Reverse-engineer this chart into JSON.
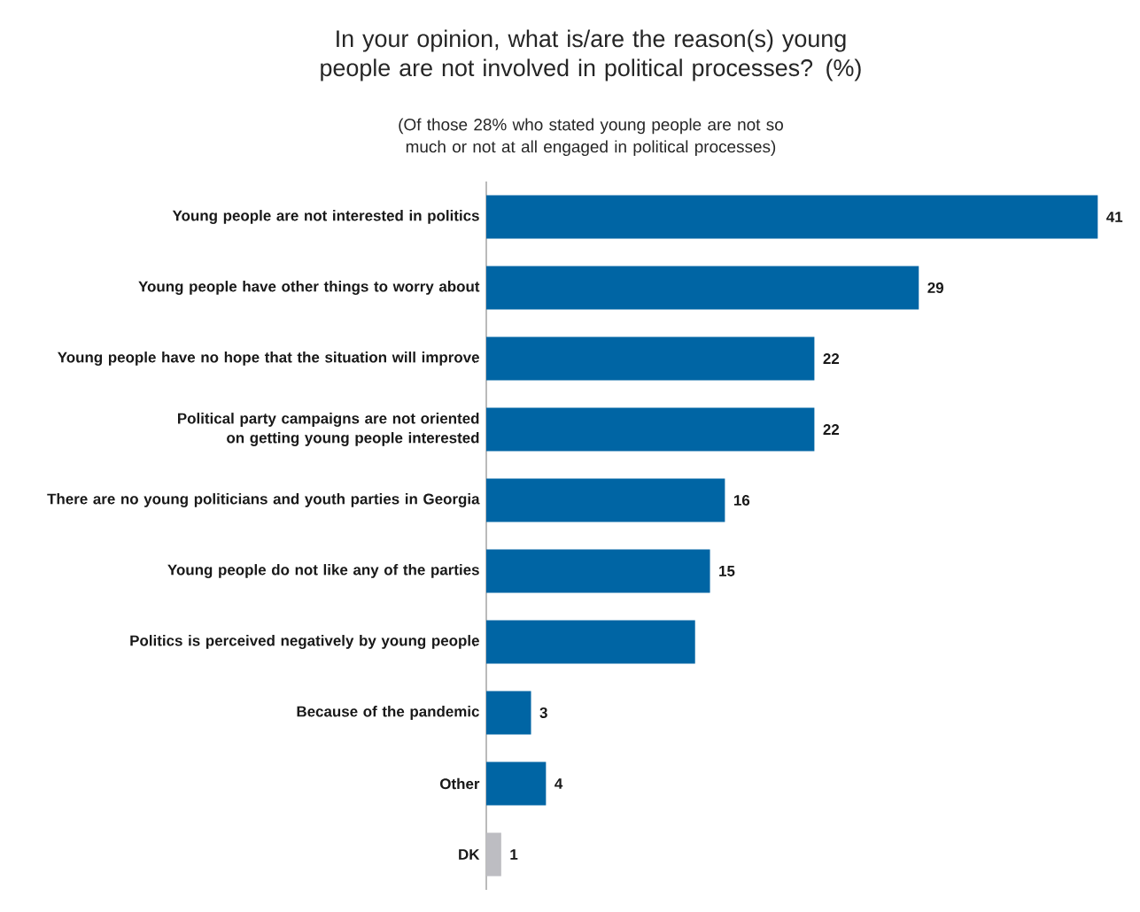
{
  "chart_data": {
    "type": "bar",
    "orientation": "horizontal",
    "title": "In your opinion, what is/are the reason(s) young people are not involved in political processes? (%)",
    "subtitle": "(Of those 28% who stated young people are not so much or not at all engaged in political processes)",
    "categories": [
      "Young people are not interested in politics",
      "Young people have other things to worry about",
      "Young people have no hope that the situation will improve",
      "Political party campaigns are not oriented on getting young people interested",
      "There are no young politicians and youth parties in Georgia",
      "Young people do not like any of the parties",
      "Politics is perceived negatively by young people",
      "Because of the pandemic",
      "Other",
      "DK"
    ],
    "values": [
      41,
      29,
      22,
      22,
      16,
      15,
      14,
      3,
      4,
      1
    ],
    "value_labels": [
      "41",
      "29",
      "22",
      "22",
      "16",
      "15",
      null,
      "3",
      "4",
      "1"
    ],
    "colors": [
      "#0065a4",
      "#0065a4",
      "#0065a4",
      "#0065a4",
      "#0065a4",
      "#0065a4",
      "#0065a4",
      "#0065a4",
      "#0065a4",
      "#bdbdc2"
    ],
    "grid": false
  }
}
